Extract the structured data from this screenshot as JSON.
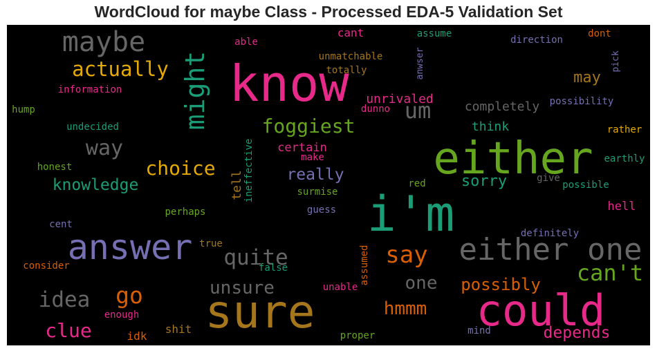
{
  "chart_data": {
    "type": "wordcloud",
    "title": "WordCloud for maybe Class - Processed EDA-5 Validation Set",
    "background": "#000000",
    "palette": [
      "#1b9e77",
      "#d95f02",
      "#7570b3",
      "#e7298a",
      "#66a61e",
      "#e6ab02",
      "#a6761d",
      "#666666"
    ],
    "words": [
      {
        "text": "know",
        "weight": 72,
        "color": "#e7298a"
      },
      {
        "text": "either",
        "weight": 64,
        "color": "#66a61e"
      },
      {
        "text": "i'm",
        "weight": 70,
        "color": "#1b9e77"
      },
      {
        "text": "sure",
        "weight": 66,
        "color": "#a6761d"
      },
      {
        "text": "could",
        "weight": 62,
        "color": "#e7298a"
      },
      {
        "text": "answer",
        "weight": 50,
        "color": "#7570b3"
      },
      {
        "text": "either one",
        "weight": 44,
        "color": "#666666"
      },
      {
        "text": "maybe",
        "weight": 40,
        "color": "#666666"
      },
      {
        "text": "might",
        "weight": 38,
        "color": "#1b9e77"
      },
      {
        "text": "say",
        "weight": 34,
        "color": "#d95f02"
      },
      {
        "text": "can't",
        "weight": 32,
        "color": "#66a61e"
      },
      {
        "text": "um",
        "weight": 32,
        "color": "#666666"
      },
      {
        "text": "quite",
        "weight": 31,
        "color": "#666666"
      },
      {
        "text": "idea",
        "weight": 31,
        "color": "#666666"
      },
      {
        "text": "go",
        "weight": 33,
        "color": "#d95f02"
      },
      {
        "text": "actually",
        "weight": 29,
        "color": "#e6ab02"
      },
      {
        "text": "foggiest",
        "weight": 28,
        "color": "#66a61e"
      },
      {
        "text": "way",
        "weight": 30,
        "color": "#666666"
      },
      {
        "text": "choice",
        "weight": 28,
        "color": "#e6ab02"
      },
      {
        "text": "unsure",
        "weight": 26,
        "color": "#666666"
      },
      {
        "text": "clue",
        "weight": 28,
        "color": "#e7298a"
      },
      {
        "text": "hmmm",
        "weight": 26,
        "color": "#d95f02"
      },
      {
        "text": "one",
        "weight": 26,
        "color": "#666666"
      },
      {
        "text": "possibly",
        "weight": 24,
        "color": "#d95f02"
      },
      {
        "text": "depends",
        "weight": 23,
        "color": "#e7298a"
      },
      {
        "text": "knowledge",
        "weight": 23,
        "color": "#1b9e77"
      },
      {
        "text": "really",
        "weight": 23,
        "color": "#7570b3"
      },
      {
        "text": "sorry",
        "weight": 22,
        "color": "#1b9e77"
      },
      {
        "text": "may",
        "weight": 22,
        "color": "#a6761d"
      },
      {
        "text": "completely",
        "weight": 18,
        "color": "#666666"
      },
      {
        "text": "unrivaled",
        "weight": 18,
        "color": "#e7298a"
      },
      {
        "text": "tell",
        "weight": 18,
        "color": "#a6761d"
      },
      {
        "text": "think",
        "weight": 18,
        "color": "#1b9e77"
      },
      {
        "text": "certain",
        "weight": 17,
        "color": "#e7298a"
      },
      {
        "text": "hell",
        "weight": 17,
        "color": "#e7298a"
      },
      {
        "text": "idk",
        "weight": 16,
        "color": "#d95f02"
      },
      {
        "text": "shit",
        "weight": 16,
        "color": "#a6761d"
      },
      {
        "text": "cant",
        "weight": 16,
        "color": "#e7298a"
      },
      {
        "text": "assumed",
        "weight": 14,
        "color": "#d95f02"
      },
      {
        "text": "possibility",
        "weight": 14,
        "color": "#7570b3"
      },
      {
        "text": "definitely",
        "weight": 14,
        "color": "#7570b3"
      },
      {
        "text": "rather",
        "weight": 14,
        "color": "#e6ab02"
      },
      {
        "text": "earthly",
        "weight": 14,
        "color": "#1b9e77"
      },
      {
        "text": "possible",
        "weight": 14,
        "color": "#1b9e77"
      },
      {
        "text": "direction",
        "weight": 14,
        "color": "#7570b3"
      },
      {
        "text": "dont",
        "weight": 14,
        "color": "#d95f02"
      },
      {
        "text": "assume",
        "weight": 14,
        "color": "#1b9e77"
      },
      {
        "text": "unmatchable",
        "weight": 14,
        "color": "#a6761d"
      },
      {
        "text": "totally",
        "weight": 14,
        "color": "#a6761d"
      },
      {
        "text": "anwser",
        "weight": 13,
        "color": "#7570b3"
      },
      {
        "text": "pick",
        "weight": 13,
        "color": "#7570b3"
      },
      {
        "text": "able",
        "weight": 14,
        "color": "#e7298a"
      },
      {
        "text": "information",
        "weight": 14,
        "color": "#e7298a"
      },
      {
        "text": "hump",
        "weight": 14,
        "color": "#66a61e"
      },
      {
        "text": "undecided",
        "weight": 14,
        "color": "#1b9e77"
      },
      {
        "text": "honest",
        "weight": 14,
        "color": "#66a61e"
      },
      {
        "text": "ineffective",
        "weight": 14,
        "color": "#1b9e77"
      },
      {
        "text": "make",
        "weight": 14,
        "color": "#e7298a"
      },
      {
        "text": "surmise",
        "weight": 14,
        "color": "#66a61e"
      },
      {
        "text": "red",
        "weight": 14,
        "color": "#66a61e"
      },
      {
        "text": "give",
        "weight": 14,
        "color": "#666666"
      },
      {
        "text": "dunno",
        "weight": 14,
        "color": "#e7298a"
      },
      {
        "text": "guess",
        "weight": 14,
        "color": "#7570b3"
      },
      {
        "text": "perhaps",
        "weight": 14,
        "color": "#66a61e"
      },
      {
        "text": "cent",
        "weight": 14,
        "color": "#7570b3"
      },
      {
        "text": "true",
        "weight": 14,
        "color": "#a6761d"
      },
      {
        "text": "consider",
        "weight": 14,
        "color": "#d95f02"
      },
      {
        "text": "false",
        "weight": 14,
        "color": "#1b9e77"
      },
      {
        "text": "unable",
        "weight": 14,
        "color": "#e7298a"
      },
      {
        "text": "enough",
        "weight": 14,
        "color": "#e7298a"
      },
      {
        "text": "proper",
        "weight": 14,
        "color": "#66a61e"
      },
      {
        "text": "mind",
        "weight": 14,
        "color": "#7570b3"
      }
    ]
  }
}
